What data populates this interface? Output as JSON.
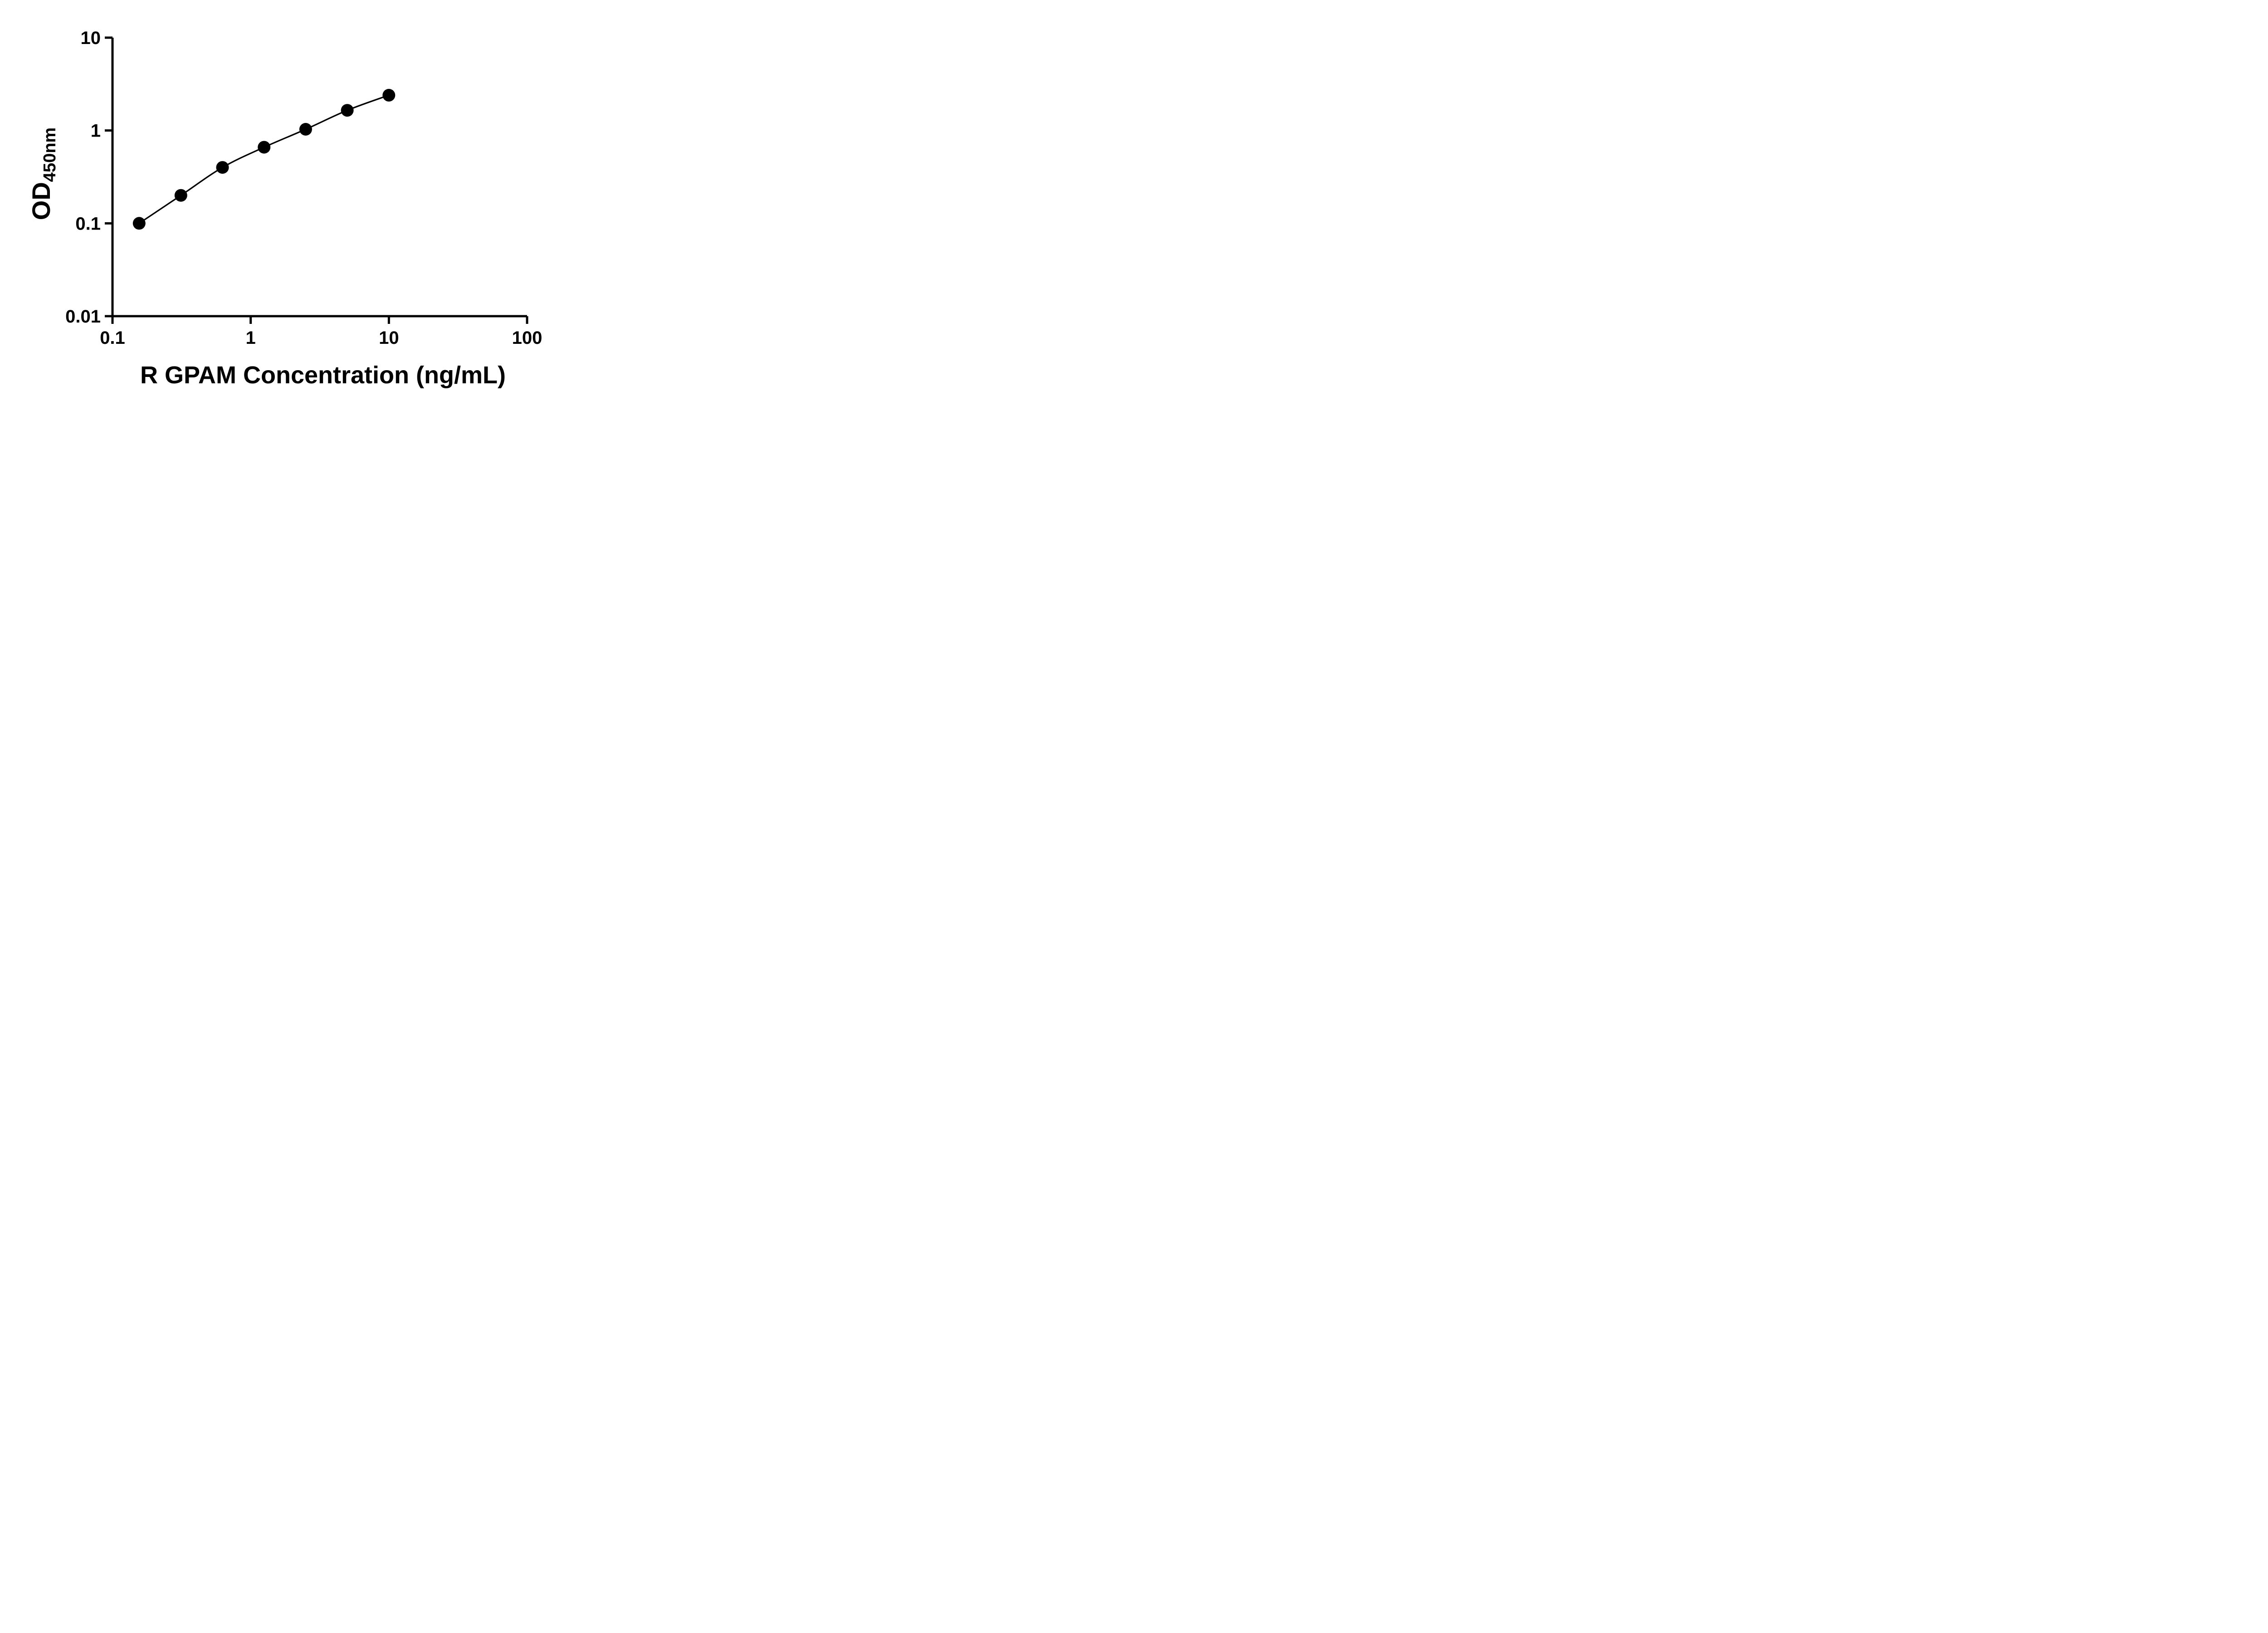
{
  "figure": {
    "background": "#ffffff",
    "axis_color": "#000000"
  },
  "chart_data": {
    "type": "scatter",
    "title": "",
    "xlabel": "R GPAM Concentration (ng/mL)",
    "ylabel_main": "OD",
    "ylabel_sub": "450nm",
    "x_scale": "log",
    "y_scale": "log",
    "xlim": [
      0.1,
      100
    ],
    "ylim": [
      0.01,
      10
    ],
    "x_ticks": [
      0.1,
      1,
      10,
      100
    ],
    "x_tick_labels": [
      "0.1",
      "1",
      "10",
      "100"
    ],
    "y_ticks": [
      0.01,
      0.1,
      1,
      10
    ],
    "y_tick_labels": [
      "0.01",
      "0.1",
      "1",
      "10"
    ],
    "grid": false,
    "legend": null,
    "line_color": "#000000",
    "marker_color": "#000000",
    "series": [
      {
        "x": [
          0.156,
          0.3125,
          0.625,
          1.25,
          2.5,
          5,
          10
        ],
        "y": [
          0.1,
          0.2,
          0.4,
          0.66,
          1.03,
          1.65,
          2.4
        ]
      }
    ]
  }
}
